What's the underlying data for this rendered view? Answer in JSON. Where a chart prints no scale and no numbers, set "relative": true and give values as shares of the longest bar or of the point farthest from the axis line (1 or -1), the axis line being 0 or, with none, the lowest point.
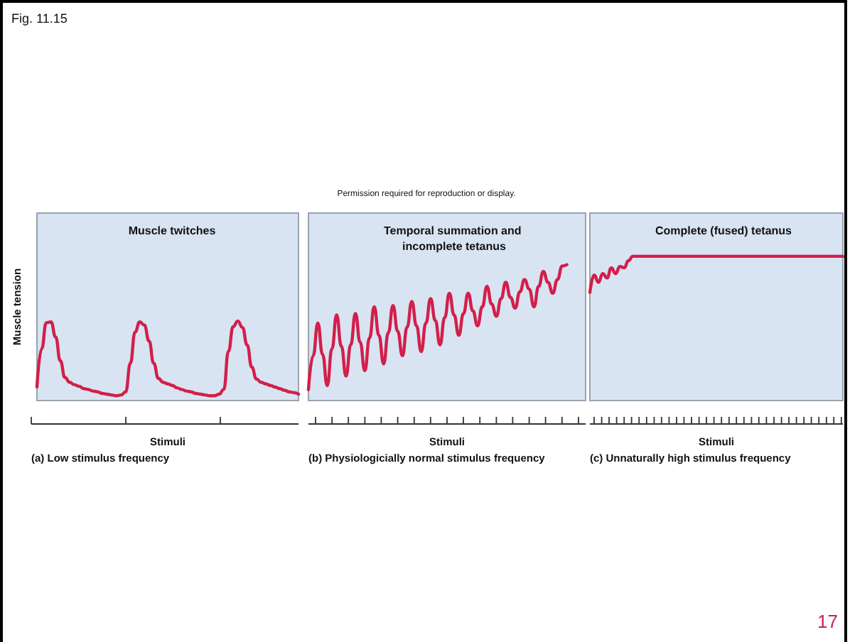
{
  "chart_data": [
    {
      "type": "line",
      "title": "Muscle twitches",
      "xlabel": "Stimuli",
      "ylabel": "Muscle tension",
      "relative": true,
      "line_style": "solid",
      "annotations": [
        "Fig. 11.15",
        "Permission required for reproduction or display.",
        "(a) Low stimulus frequency"
      ],
      "categories": [
        null,
        null,
        null,
        null,
        null,
        null,
        null,
        null,
        null,
        null,
        null,
        null,
        null,
        null,
        null,
        null,
        null,
        null,
        null,
        null,
        null,
        null,
        null,
        null,
        null,
        null,
        null,
        null,
        null,
        null,
        null,
        null,
        null,
        null,
        null,
        null,
        null,
        null,
        null,
        null,
        null,
        null,
        null,
        null,
        null,
        null,
        null,
        null,
        null,
        null,
        null,
        null,
        null,
        null,
        null,
        null,
        null
      ],
      "series": [
        {
          "color": "#d21f4b",
          "values": [
            0.17,
            0.65,
            0.98,
            0.99,
            0.8,
            0.5,
            0.29,
            0.23,
            0.2,
            0.18,
            0.15,
            0.14,
            0.12,
            0.11,
            0.09,
            0.08,
            0.07,
            0.06,
            0.07,
            0.11,
            0.47,
            0.86,
            0.99,
            0.95,
            0.75,
            0.47,
            0.28,
            0.23,
            0.21,
            0.19,
            0.16,
            0.14,
            0.12,
            0.11,
            0.09,
            0.08,
            0.07,
            0.06,
            0.06,
            0.08,
            0.14,
            0.62,
            0.93,
            1,
            0.92,
            0.7,
            0.42,
            0.27,
            0.23,
            0.21,
            0.19,
            0.17,
            0.15,
            0.13,
            0.11,
            0.1,
            0.08
          ]
        }
      ]
    },
    {
      "type": "line",
      "title": "Temporal summation and incomplete tetanus",
      "xlabel": "Stimuli",
      "relative": true,
      "line_style": "solid",
      "annotations": [
        "(b) Physiologicially normal stimulus frequency"
      ],
      "categories": [
        null,
        null,
        null,
        null,
        null,
        null,
        null,
        null,
        null,
        null,
        null,
        null,
        null,
        null,
        null,
        null,
        null,
        null,
        null,
        null,
        null,
        null,
        null,
        null,
        null,
        null,
        null,
        null,
        null,
        null,
        null,
        null,
        null,
        null,
        null,
        null,
        null,
        null,
        null,
        null,
        null,
        null,
        null,
        null,
        null,
        null,
        null,
        null,
        null,
        null,
        null,
        null,
        null,
        null,
        null,
        null,
        null,
        null,
        null,
        null
      ],
      "series": [
        {
          "color": "#d21f4b",
          "values": [
            0.08,
            0.33,
            0.57,
            0.34,
            0.11,
            0.38,
            0.63,
            0.4,
            0.18,
            0.41,
            0.64,
            0.43,
            0.22,
            0.46,
            0.69,
            0.48,
            0.27,
            0.5,
            0.7,
            0.51,
            0.33,
            0.54,
            0.73,
            0.55,
            0.36,
            0.57,
            0.75,
            0.59,
            0.41,
            0.61,
            0.79,
            0.63,
            0.48,
            0.64,
            0.79,
            0.66,
            0.55,
            0.69,
            0.84,
            0.71,
            0.62,
            0.75,
            0.87,
            0.76,
            0.68,
            0.8,
            0.89,
            0.82,
            0.69,
            0.84,
            0.95,
            0.87,
            0.79,
            0.89,
            0.99,
            1,
            null,
            null,
            null,
            null
          ]
        }
      ]
    },
    {
      "type": "line",
      "title": "Complete (fused) tetanus",
      "xlabel": "Stimuli",
      "relative": true,
      "line_style": "solid",
      "annotations": [
        "(c) Unnaturally high stimulus frequency",
        "17"
      ],
      "categories": [
        null,
        null,
        null,
        null,
        null,
        null,
        null,
        null,
        null,
        null,
        null,
        null,
        null,
        null,
        null,
        null,
        null,
        null,
        null,
        null,
        null,
        null,
        null,
        null,
        null,
        null,
        null,
        null,
        null,
        null,
        null,
        null,
        null,
        null,
        null,
        null,
        null,
        null,
        null,
        null,
        null,
        null,
        null,
        null,
        null,
        null,
        null,
        null,
        null,
        null,
        null,
        null,
        null,
        null,
        null,
        null,
        null,
        null,
        null,
        null
      ],
      "series": [
        {
          "color": "#d21f4b",
          "values": [
            0.75,
            0.87,
            0.82,
            0.88,
            0.85,
            0.92,
            0.88,
            0.93,
            0.92,
            0.97,
            1,
            1,
            1,
            1,
            1,
            1,
            1,
            1,
            1,
            1,
            1,
            1,
            1,
            1,
            1,
            1,
            1,
            1,
            1,
            1,
            1,
            1,
            1,
            1,
            1,
            1,
            1,
            1,
            1,
            1,
            1,
            1,
            1,
            1,
            1,
            1,
            1,
            1,
            1,
            1,
            1,
            1,
            1,
            1,
            1,
            1,
            1,
            1,
            1,
            1
          ]
        }
      ]
    }
  ]
}
